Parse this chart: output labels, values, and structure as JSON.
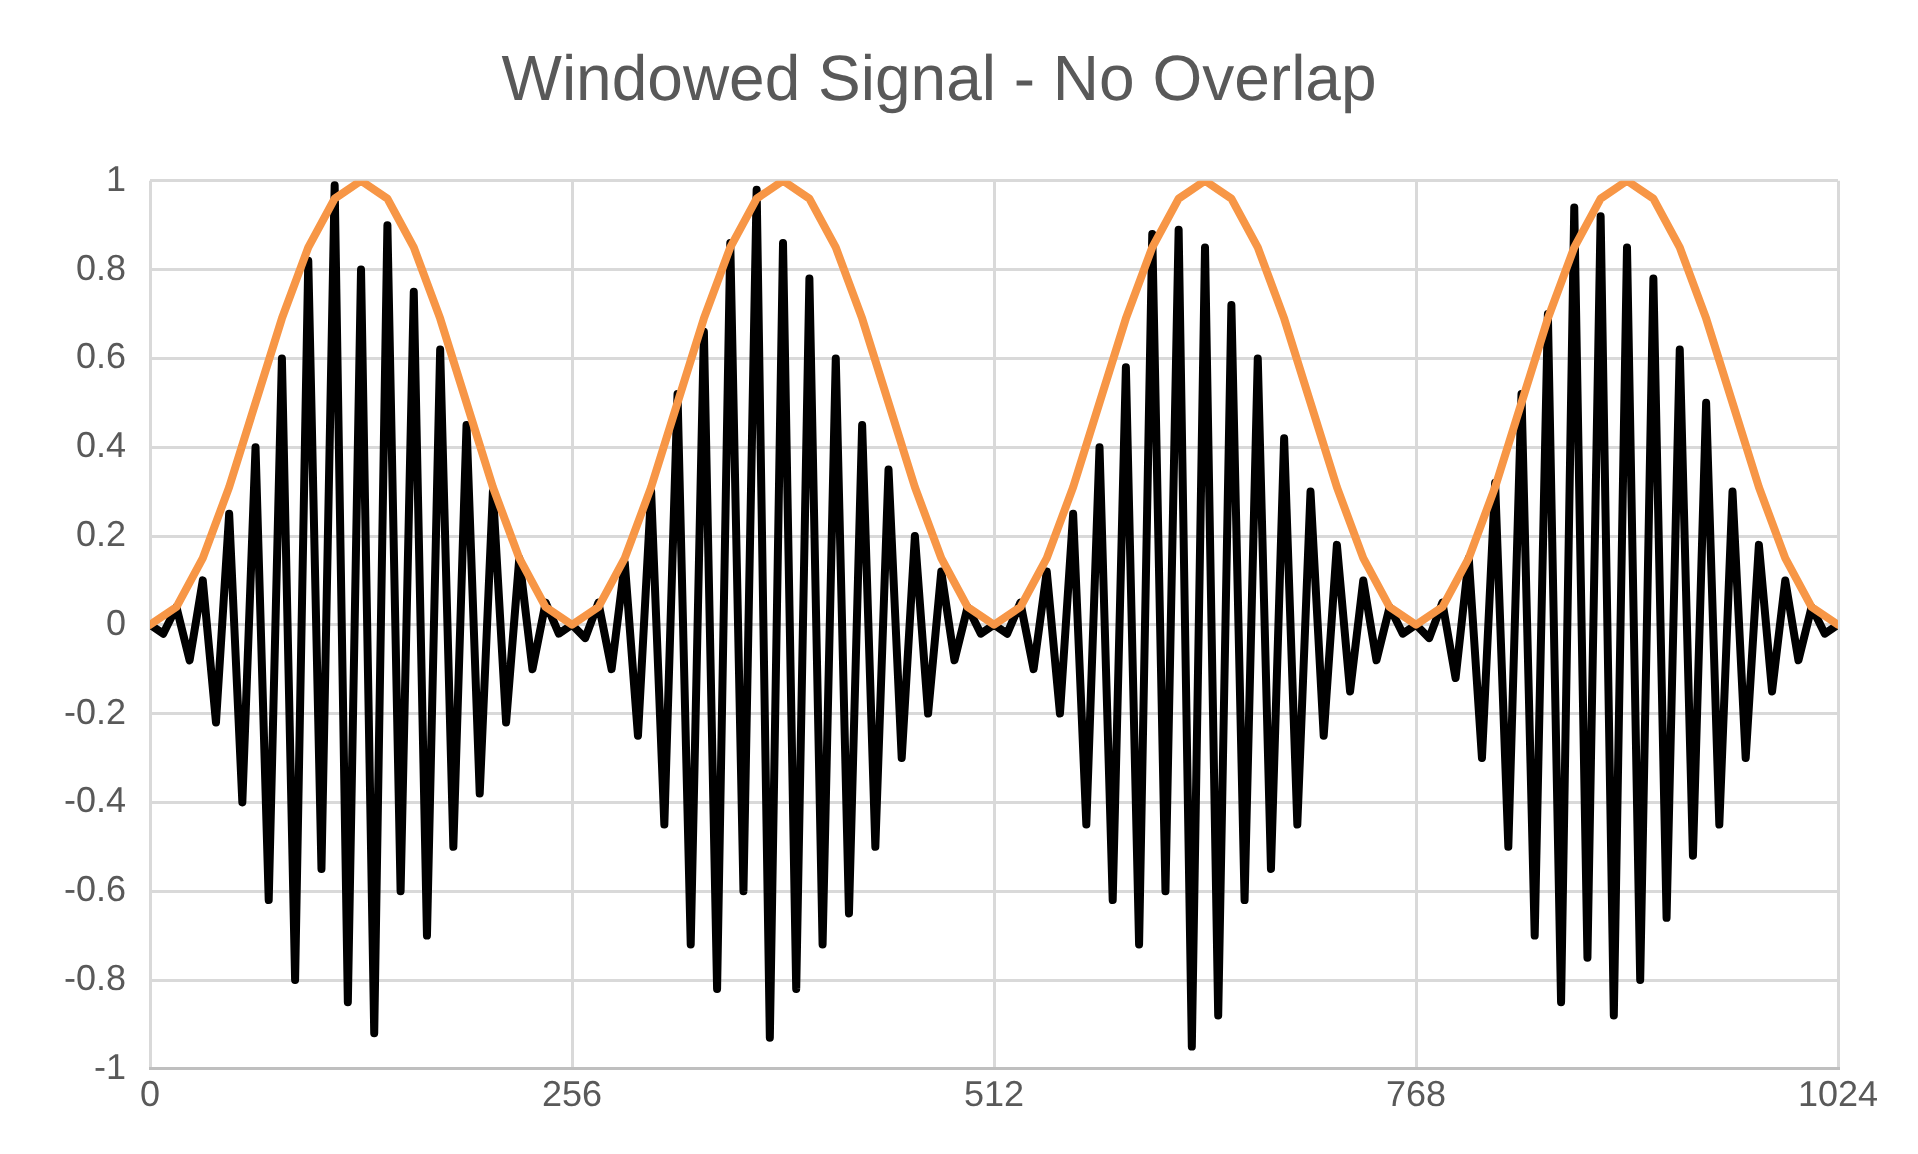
{
  "chart_data": {
    "type": "line",
    "title": "Windowed Signal - No Overlap",
    "xlim": [
      0,
      1024
    ],
    "xticks": [
      0,
      256,
      512,
      768,
      1024
    ],
    "ylim": [
      -1,
      1
    ],
    "yticks": [
      -1,
      -0.8,
      -0.6,
      -0.4,
      -0.2,
      0,
      0.2,
      0.4,
      0.6,
      0.8,
      1
    ],
    "grid": true,
    "legend": false,
    "marker": "none",
    "line_style": "solid",
    "series": [
      {
        "color": "#000000",
        "x": [
          0,
          8,
          16,
          24,
          32,
          40,
          48,
          56,
          64,
          72,
          80,
          88,
          96,
          104,
          112,
          120,
          128,
          136,
          144,
          152,
          160,
          168,
          176,
          184,
          192,
          200,
          208,
          216,
          224,
          232,
          240,
          248,
          256,
          264,
          272,
          280,
          288,
          296,
          304,
          312,
          320,
          328,
          336,
          344,
          352,
          360,
          368,
          376,
          384,
          392,
          400,
          408,
          416,
          424,
          432,
          440,
          448,
          456,
          464,
          472,
          480,
          488,
          496,
          504,
          512,
          520,
          528,
          536,
          544,
          552,
          560,
          568,
          576,
          584,
          592,
          600,
          608,
          616,
          624,
          632,
          640,
          648,
          656,
          664,
          672,
          680,
          688,
          696,
          704,
          712,
          720,
          728,
          736,
          744,
          752,
          760,
          768,
          776,
          784,
          792,
          800,
          808,
          816,
          824,
          832,
          840,
          848,
          856,
          864,
          872,
          880,
          888,
          896,
          904,
          912,
          920,
          928,
          936,
          944,
          952,
          960,
          968,
          976,
          984,
          992,
          1000,
          1008,
          1016,
          1024
        ],
        "values": [
          0,
          -0.02,
          0.04,
          -0.08,
          0.1,
          -0.22,
          0.25,
          -0.4,
          0.4,
          -0.62,
          0.6,
          -0.8,
          0.82,
          -0.55,
          0.99,
          -0.85,
          0.8,
          -0.92,
          0.9,
          -0.6,
          0.75,
          -0.7,
          0.62,
          -0.5,
          0.45,
          -0.38,
          0.3,
          -0.22,
          0.15,
          -0.1,
          0.05,
          -0.02,
          0,
          -0.03,
          0.05,
          -0.1,
          0.14,
          -0.25,
          0.3,
          -0.45,
          0.52,
          -0.72,
          0.66,
          -0.82,
          0.86,
          -0.6,
          0.98,
          -0.93,
          0.86,
          -0.82,
          0.78,
          -0.72,
          0.6,
          -0.65,
          0.45,
          -0.5,
          0.35,
          -0.3,
          0.2,
          -0.2,
          0.12,
          -0.08,
          0.04,
          -0.02,
          0,
          -0.02,
          0.05,
          -0.1,
          0.12,
          -0.2,
          0.25,
          -0.45,
          0.4,
          -0.62,
          0.58,
          -0.72,
          0.88,
          -0.6,
          0.89,
          -0.95,
          0.85,
          -0.88,
          0.72,
          -0.62,
          0.6,
          -0.55,
          0.42,
          -0.45,
          0.3,
          -0.25,
          0.18,
          -0.15,
          0.1,
          -0.08,
          0.04,
          -0.02,
          0,
          -0.03,
          0.05,
          -0.12,
          0.15,
          -0.3,
          0.32,
          -0.5,
          0.52,
          -0.7,
          0.7,
          -0.85,
          0.94,
          -0.75,
          0.92,
          -0.88,
          0.85,
          -0.8,
          0.78,
          -0.66,
          0.62,
          -0.52,
          0.5,
          -0.45,
          0.3,
          -0.3,
          0.18,
          -0.15,
          0.1,
          -0.08,
          0.04,
          -0.02,
          0
        ]
      },
      {
        "color": "#f79646",
        "x": [
          0,
          16,
          32,
          48,
          64,
          80,
          96,
          112,
          128,
          144,
          160,
          176,
          192,
          208,
          224,
          240,
          256,
          272,
          288,
          304,
          320,
          336,
          352,
          368,
          384,
          400,
          416,
          432,
          448,
          464,
          480,
          496,
          512,
          528,
          544,
          560,
          576,
          592,
          608,
          624,
          640,
          656,
          672,
          688,
          704,
          720,
          736,
          752,
          768,
          784,
          800,
          816,
          832,
          848,
          864,
          880,
          896,
          912,
          928,
          944,
          960,
          976,
          992,
          1008,
          1024
        ],
        "values": [
          0,
          0.04,
          0.15,
          0.31,
          0.5,
          0.69,
          0.85,
          0.96,
          1,
          0.96,
          0.85,
          0.69,
          0.5,
          0.31,
          0.15,
          0.04,
          0,
          0.04,
          0.15,
          0.31,
          0.5,
          0.69,
          0.85,
          0.96,
          1,
          0.96,
          0.85,
          0.69,
          0.5,
          0.31,
          0.15,
          0.04,
          0,
          0.04,
          0.15,
          0.31,
          0.5,
          0.69,
          0.85,
          0.96,
          1,
          0.96,
          0.85,
          0.69,
          0.5,
          0.31,
          0.15,
          0.04,
          0,
          0.04,
          0.15,
          0.31,
          0.5,
          0.69,
          0.85,
          0.96,
          1,
          0.96,
          0.85,
          0.69,
          0.5,
          0.31,
          0.15,
          0.04,
          0
        ]
      }
    ]
  }
}
